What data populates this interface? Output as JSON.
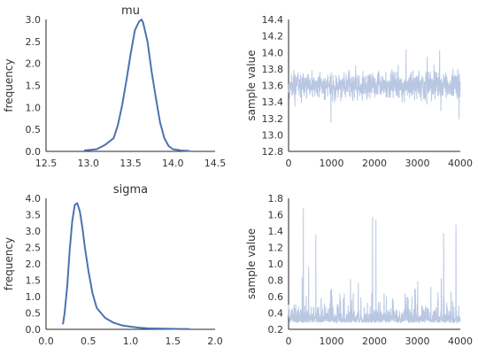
{
  "chart_data": [
    {
      "type": "line",
      "role": "density",
      "title": "mu",
      "xlabel": "",
      "ylabel": "frequency",
      "xlim": [
        12.5,
        14.5
      ],
      "ylim": [
        0.0,
        3.0
      ],
      "xticks": [
        "12.5",
        "13.0",
        "13.5",
        "14.0",
        "14.5"
      ],
      "yticks": [
        "0.0",
        "0.5",
        "1.0",
        "1.5",
        "2.0",
        "2.5",
        "3.0"
      ],
      "series": [
        {
          "color": "#4c72b0",
          "x": [
            12.95,
            13.0,
            13.1,
            13.2,
            13.3,
            13.35,
            13.4,
            13.45,
            13.5,
            13.55,
            13.6,
            13.63,
            13.65,
            13.7,
            13.75,
            13.8,
            13.85,
            13.9,
            13.95,
            14.0,
            14.1,
            14.2
          ],
          "y": [
            0.02,
            0.03,
            0.05,
            0.15,
            0.3,
            0.6,
            1.05,
            1.6,
            2.2,
            2.75,
            2.95,
            3.0,
            2.92,
            2.5,
            1.8,
            1.2,
            0.65,
            0.3,
            0.12,
            0.05,
            0.02,
            0.01
          ]
        }
      ]
    },
    {
      "type": "line",
      "role": "trace",
      "title": "",
      "xlabel": "",
      "ylabel": "sample value",
      "xlim": [
        0,
        4000
      ],
      "ylim": [
        12.8,
        14.4
      ],
      "xticks": [
        "0",
        "1000",
        "2000",
        "3000",
        "4000"
      ],
      "yticks": [
        "12.8",
        "13.0",
        "13.2",
        "13.4",
        "13.6",
        "13.8",
        "14.0",
        "14.2",
        "14.4"
      ],
      "samples": 4000,
      "center": 13.6,
      "spread": 0.13,
      "min": 12.92,
      "max": 14.18,
      "series": [
        {
          "color": "#b9c7e2"
        }
      ]
    },
    {
      "type": "line",
      "role": "density",
      "title": "sigma",
      "xlabel": "",
      "ylabel": "frequency",
      "xlim": [
        0.0,
        2.0
      ],
      "ylim": [
        0.0,
        4.0
      ],
      "xticks": [
        "0.0",
        "0.5",
        "1.0",
        "1.5",
        "2.0"
      ],
      "yticks": [
        "0.0",
        "0.5",
        "1.0",
        "1.5",
        "2.0",
        "2.5",
        "3.0",
        "3.5",
        "4.0"
      ],
      "series": [
        {
          "color": "#4c72b0",
          "x": [
            0.2,
            0.22,
            0.25,
            0.28,
            0.31,
            0.34,
            0.37,
            0.4,
            0.43,
            0.46,
            0.5,
            0.55,
            0.6,
            0.7,
            0.8,
            0.9,
            1.0,
            1.1,
            1.2,
            1.4,
            1.6,
            1.7
          ],
          "y": [
            0.15,
            0.5,
            1.3,
            2.4,
            3.3,
            3.8,
            3.85,
            3.6,
            3.1,
            2.5,
            1.8,
            1.1,
            0.65,
            0.35,
            0.2,
            0.12,
            0.08,
            0.05,
            0.03,
            0.02,
            0.01,
            0.01
          ]
        }
      ]
    },
    {
      "type": "line",
      "role": "trace",
      "title": "",
      "xlabel": "",
      "ylabel": "sample value",
      "xlim": [
        0,
        4000
      ],
      "ylim": [
        0.2,
        1.8
      ],
      "xticks": [
        "0",
        "1000",
        "2000",
        "3000",
        "4000"
      ],
      "yticks": [
        "0.2",
        "0.4",
        "0.6",
        "0.8",
        "1.0",
        "1.2",
        "1.4",
        "1.6",
        "1.8"
      ],
      "samples": 4000,
      "center": 0.38,
      "spread": 0.12,
      "min": 0.22,
      "max": 1.7,
      "series": [
        {
          "color": "#b9c7e2"
        }
      ]
    }
  ]
}
